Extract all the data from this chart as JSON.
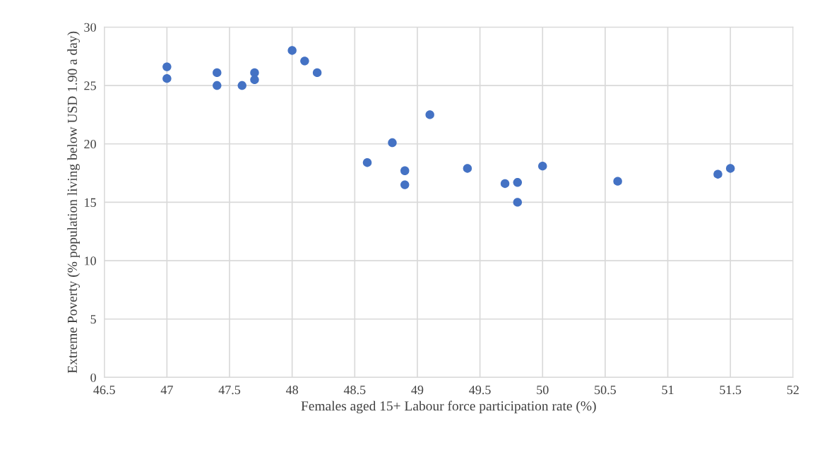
{
  "chart_data": {
    "type": "scatter",
    "xlabel": "Females aged 15+ Labour force participation rate (%)",
    "ylabel": "Extreme Poverty (% population living below USD 1.90 a day)",
    "x": [
      47.0,
      47.0,
      47.4,
      47.4,
      47.6,
      47.7,
      47.7,
      48.0,
      48.1,
      48.2,
      48.6,
      48.8,
      48.9,
      48.9,
      49.1,
      49.4,
      49.7,
      49.8,
      49.8,
      50.0,
      50.6,
      51.4,
      51.5
    ],
    "values": [
      26.6,
      25.6,
      26.1,
      25.0,
      25.0,
      26.1,
      25.5,
      28.0,
      27.1,
      26.1,
      18.4,
      20.1,
      17.7,
      16.5,
      22.5,
      17.9,
      16.6,
      16.7,
      15.0,
      18.1,
      16.8,
      17.4,
      17.9
    ],
    "color": "#4472c4",
    "marker": "circle",
    "xlim": [
      46.5,
      52
    ],
    "xticks": [
      46.5,
      47,
      47.5,
      48,
      48.5,
      49,
      49.5,
      50,
      50.5,
      51,
      51.5,
      52
    ],
    "ylim": [
      0,
      30
    ],
    "yticks": [
      0,
      5,
      10,
      15,
      20,
      25,
      30
    ],
    "grid": true
  }
}
